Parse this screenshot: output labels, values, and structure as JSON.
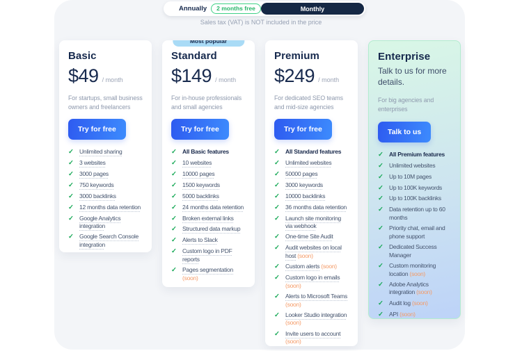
{
  "billing_toggle": {
    "annually_label": "Annually",
    "annually_badge": "2 months free",
    "monthly_label": "Monthly",
    "selected": "Monthly"
  },
  "tax_note": "Sales tax (VAT) is NOT included in the price",
  "soon_label": "(soon)",
  "icons": {
    "check": "✓"
  },
  "colors": {
    "accent_blue": "#2e5bf0",
    "navy": "#16294d",
    "check_green": "#18a957",
    "soon_orange": "#f49a66",
    "most_popular_badge_blue": "#a9dbf6",
    "annually_badge_green": "#27b669",
    "enterprise_gradient_top": "#d9f7e6",
    "enterprise_gradient_bottom": "#bdd3f8",
    "panel_gray": "#f3f5f8"
  },
  "plans": [
    {
      "name": "Basic",
      "price": "$49",
      "period": "/ month",
      "description": "For startups, small business owners and freelancers",
      "cta": "Try for free",
      "features": [
        {
          "text": "Unlimited sharing",
          "underline": true
        },
        {
          "text": "3 websites",
          "underline": true
        },
        {
          "text": "3000 pages",
          "underline": true
        },
        {
          "text": "750 keywords",
          "underline": true
        },
        {
          "text": "3000 backlinks",
          "underline": true
        },
        {
          "text": "12 months data retention",
          "underline": true
        },
        {
          "text": "Google Analytics integration",
          "underline": true
        },
        {
          "text": "Google Search Console integration",
          "underline": true
        }
      ]
    },
    {
      "name": "Standard",
      "badge": "Most popular",
      "price": "$149",
      "period": "/ month",
      "description": "For in-house professionals and small agencies",
      "cta": "Try for free",
      "features": [
        {
          "text": "All Basic features",
          "bold": true
        },
        {
          "text": "10 websites",
          "underline": true
        },
        {
          "text": "10000 pages",
          "underline": true
        },
        {
          "text": "1500 keywords",
          "underline": true
        },
        {
          "text": "5000 backlinks",
          "underline": true
        },
        {
          "text": "24 months data retention",
          "underline": true
        },
        {
          "text": "Broken external links",
          "underline": true
        },
        {
          "text": "Structured data markup",
          "underline": true
        },
        {
          "text": "Alerts to Slack",
          "underline": true
        },
        {
          "text": "Custom logo in PDF reports",
          "underline": true
        },
        {
          "text": "Pages segmentation",
          "underline": true,
          "soon": true
        }
      ]
    },
    {
      "name": "Premium",
      "price": "$249",
      "period": "/ month",
      "description": "For dedicated SEO teams and mid-size agencies",
      "cta": "Try for free",
      "features": [
        {
          "text": "All Standard features",
          "bold": true
        },
        {
          "text": "Unlimited websites",
          "underline": true
        },
        {
          "text": "50000 pages",
          "underline": true
        },
        {
          "text": "3000 keywords",
          "underline": true
        },
        {
          "text": "10000 backlinks",
          "underline": true
        },
        {
          "text": "36 months data retention",
          "underline": true
        },
        {
          "text": "Launch site monitoring via webhook",
          "underline": true
        },
        {
          "text": "One-time Site Audit",
          "underline": true
        },
        {
          "text": "Audit websites on local host",
          "underline": true,
          "soon": true
        },
        {
          "text": "Custom alerts",
          "underline": true,
          "soon": true
        },
        {
          "text": "Custom logo in emails",
          "underline": true,
          "soon": true
        },
        {
          "text": "Alerts to Microsoft Teams",
          "underline": true,
          "soon": true
        },
        {
          "text": "Looker Studio integration",
          "underline": true,
          "soon": true
        },
        {
          "text": "Invite users to account",
          "underline": true,
          "soon": true
        }
      ]
    },
    {
      "name": "Enterprise",
      "tagline": "Talk to us for more details.",
      "description": "For big agencies and enterprises",
      "cta": "Talk to us",
      "features": [
        {
          "text": "All Premium features",
          "bold": true
        },
        {
          "text": "Unlimited websites"
        },
        {
          "text": "Up to 10M pages"
        },
        {
          "text": "Up to 100K keywords"
        },
        {
          "text": "Up to 100K backlinks"
        },
        {
          "text": "Data retention up to 60 months"
        },
        {
          "text": "Priority chat, email and phone support"
        },
        {
          "text": "Dedicated Success Manager"
        },
        {
          "text": "Custom monitoring location",
          "soon": true
        },
        {
          "text": "Adobe Analytics integration",
          "soon": true
        },
        {
          "text": "Audit log",
          "soon": true
        },
        {
          "text": "API",
          "soon": true
        }
      ]
    }
  ]
}
